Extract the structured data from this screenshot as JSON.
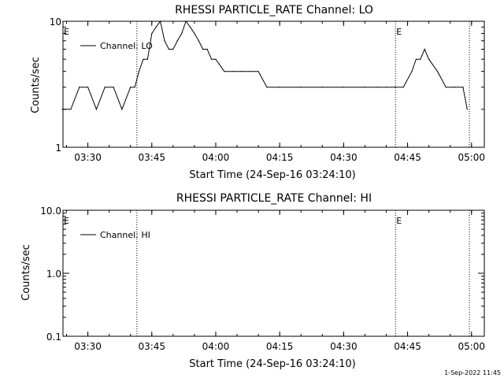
{
  "footer": {
    "timestamp": "1-Sep-2022 11:45"
  },
  "chart_data": [
    {
      "type": "line",
      "title": "RHESSI PARTICLE_RATE Channel: LO",
      "xlabel": "Start Time (24-Sep-16 03:24:10)",
      "ylabel": "Counts/sec",
      "y_scale": "log",
      "ylim": [
        1,
        10
      ],
      "y_ticks": [
        "1",
        "10"
      ],
      "x_ticks": [
        "03:30",
        "03:45",
        "04:00",
        "04:15",
        "04:30",
        "04:45",
        "05:00"
      ],
      "xlim": [
        "03:24:10",
        "05:03:00"
      ],
      "grid": false,
      "legend": "top-left",
      "vlines": [
        "03:41:30",
        "04:42:10",
        "04:59:30"
      ],
      "vline_labels": [
        {
          "x": "03:24:10",
          "text": "E"
        },
        {
          "x": "04:42:10",
          "text": "E"
        }
      ],
      "series": [
        {
          "name": "Channel: LO",
          "x": [
            "03:24",
            "03:26",
            "03:28",
            "03:30",
            "03:32",
            "03:34",
            "03:36",
            "03:38",
            "03:40",
            "03:41",
            "03:42",
            "03:43",
            "03:44",
            "03:45",
            "03:46",
            "03:47",
            "03:48",
            "03:49",
            "03:50",
            "03:51",
            "03:52",
            "03:53",
            "03:54",
            "03:55",
            "03:56",
            "03:57",
            "03:58",
            "03:59",
            "04:00",
            "04:02",
            "04:04",
            "04:06",
            "04:08",
            "04:10",
            "04:12",
            "04:15",
            "04:20",
            "04:25",
            "04:30",
            "04:35",
            "04:38",
            "04:40",
            "04:42",
            "04:44",
            "04:46",
            "04:47",
            "04:48",
            "04:49",
            "04:50",
            "04:52",
            "04:54",
            "04:56",
            "04:58",
            "04:59"
          ],
          "values": [
            2,
            2,
            3,
            3,
            2,
            3,
            3,
            2,
            3,
            3,
            4,
            5,
            5,
            8,
            9,
            10,
            7,
            6,
            6,
            7,
            8,
            10,
            9,
            8,
            7,
            6,
            6,
            5,
            5,
            4,
            4,
            4,
            4,
            4,
            3,
            3,
            3,
            3,
            3,
            3,
            3,
            3,
            3,
            3,
            4,
            5,
            5,
            6,
            5,
            4,
            3,
            3,
            3,
            2
          ]
        }
      ]
    },
    {
      "type": "line",
      "title": "RHESSI PARTICLE_RATE Channel: HI",
      "xlabel": "Start Time (24-Sep-16 03:24:10)",
      "ylabel": "Counts/sec",
      "y_scale": "log",
      "ylim": [
        0.1,
        10
      ],
      "y_ticks": [
        "0.1",
        "1.0",
        "10.0"
      ],
      "x_ticks": [
        "03:30",
        "03:45",
        "04:00",
        "04:15",
        "04:30",
        "04:45",
        "05:00"
      ],
      "xlim": [
        "03:24:10",
        "05:03:00"
      ],
      "grid": false,
      "legend": "top-left",
      "vlines": [
        "03:41:30",
        "04:42:10",
        "04:59:30"
      ],
      "vline_labels": [
        {
          "x": "03:24:10",
          "text": "E"
        },
        {
          "x": "04:42:10",
          "text": "E"
        }
      ],
      "series": [
        {
          "name": "Channel: HI",
          "x": [],
          "values": []
        }
      ]
    }
  ]
}
